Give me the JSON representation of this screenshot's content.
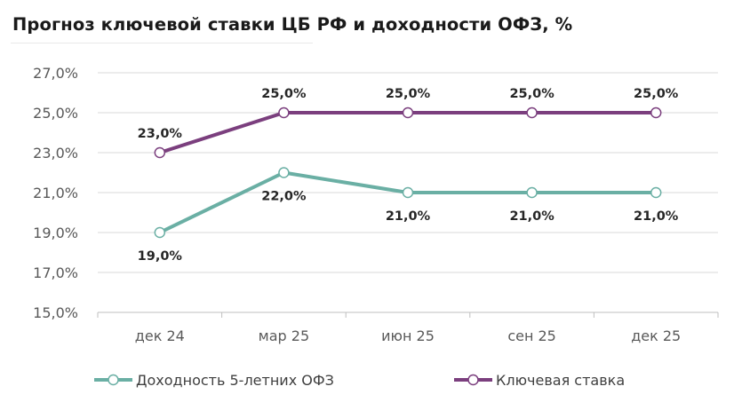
{
  "title": "Прогноз ключевой ставки ЦБ РФ и доходности ОФЗ, %",
  "chart_data": {
    "type": "line",
    "title": "Прогноз ключевой ставки ЦБ РФ и доходности ОФЗ, %",
    "categories": [
      "дек 24",
      "мар 25",
      "июн 25",
      "сен 25",
      "дек 25"
    ],
    "ylim": [
      15,
      27
    ],
    "yticks": [
      15,
      17,
      19,
      21,
      23,
      25,
      27
    ],
    "ytick_labels": [
      "15,0%",
      "17,0%",
      "19,0%",
      "21,0%",
      "23,0%",
      "25,0%",
      "27,0%"
    ],
    "grid": true,
    "legend_position": "bottom",
    "series": [
      {
        "name": "Доходность 5-летних ОФЗ",
        "values": [
          19,
          22,
          21,
          21,
          21
        ],
        "labels": [
          "19,0%",
          "22,0%",
          "21,0%",
          "21,0%",
          "21,0%"
        ],
        "color": "#6aafa4",
        "label_position": "below"
      },
      {
        "name": "Ключевая ставка",
        "values": [
          23,
          25,
          25,
          25,
          25
        ],
        "labels": [
          "23,0%",
          "25,0%",
          "25,0%",
          "25,0%",
          "25,0%"
        ],
        "color": "#7b3f7e",
        "label_position": "above"
      }
    ]
  }
}
